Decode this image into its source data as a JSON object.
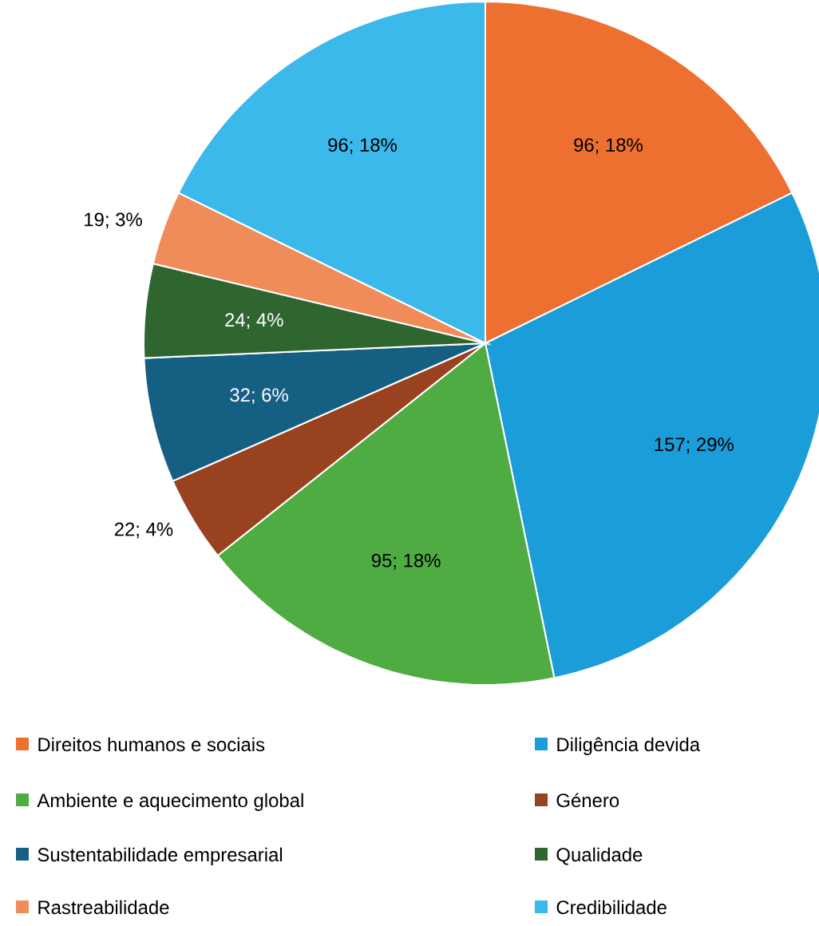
{
  "chart_data": {
    "type": "pie",
    "categories": [
      "Direitos humanos e sociais",
      "Diligência devida",
      "Ambiente e aquecimento global",
      "Género",
      "Sustentabilidade empresarial",
      "Qualidade",
      "Rastreabilidade",
      "Credibilidade"
    ],
    "values": [
      96,
      157,
      95,
      22,
      32,
      24,
      19,
      96
    ],
    "value_labels": [
      "96; 18%",
      "157; 29%",
      "95; 18%",
      "22; 4%",
      "32; 6%",
      "24; 4%",
      "19; 3%",
      "96; 18%"
    ],
    "colors": [
      "#ed7031",
      "#1a9dd9",
      "#4eac43",
      "#994220",
      "#155f82",
      "#2f6630",
      "#ef8c5a",
      "#3bb9eb"
    ],
    "legend": "bottom"
  }
}
